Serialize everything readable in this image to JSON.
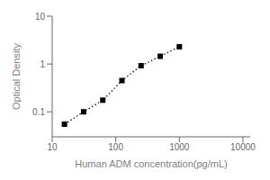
{
  "chart_data": {
    "type": "line",
    "title": "",
    "xlabel": "Human ADM concentration(pg/mL)",
    "ylabel": "Optical Density",
    "x": [
      15.6,
      31.2,
      62.5,
      125,
      250,
      500,
      1000
    ],
    "values": [
      0.055,
      0.1,
      0.175,
      0.45,
      0.92,
      1.45,
      2.3
    ],
    "xlim": [
      10,
      13000
    ],
    "ylim": [
      0.03,
      10
    ],
    "xticks": [
      10,
      100,
      1000,
      10000
    ],
    "yticks": [
      0.1,
      1,
      10
    ],
    "log": true,
    "color": "black",
    "marker": "square",
    "line_style": "dotted",
    "grid": false
  }
}
